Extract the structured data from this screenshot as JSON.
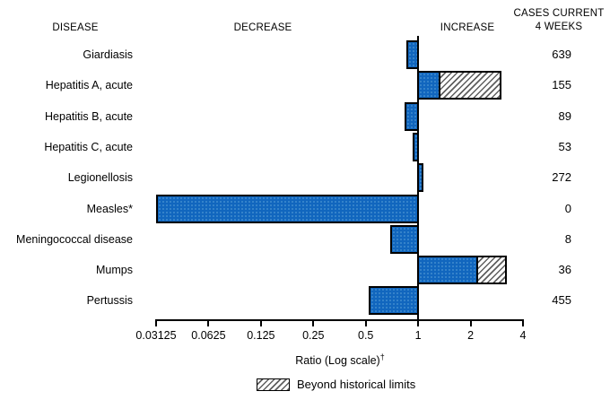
{
  "header": {
    "disease": "DISEASE",
    "decrease": "DECREASE",
    "increase": "INCREASE",
    "cases_line1": "CASES CURRENT",
    "cases_line2": "4 WEEKS"
  },
  "chart_data": {
    "type": "bar",
    "orientation": "horizontal",
    "scale": "log2",
    "title": "",
    "xlabel": "Ratio (Log scale)",
    "xlabel_superscript": "†",
    "axis": {
      "min": 0.03125,
      "max": 4,
      "baseline": 1,
      "ticks": [
        0.03125,
        0.0625,
        0.125,
        0.25,
        0.5,
        1,
        2,
        4
      ],
      "tick_labels": [
        "0.03125",
        "0.0625",
        "0.125",
        "0.25",
        "0.5",
        "1",
        "2",
        "4"
      ]
    },
    "legend": {
      "label": "Beyond historical limits",
      "pattern": "diagonal-hatch",
      "position": "bottom"
    },
    "rows": [
      {
        "disease": "Giardiasis",
        "ratio": 0.86,
        "beyond": null,
        "cases": "639"
      },
      {
        "disease": "Hepatitis A, acute",
        "ratio": 1.35,
        "beyond": 3.0,
        "cases": "155"
      },
      {
        "disease": "Hepatitis B, acute",
        "ratio": 0.84,
        "beyond": null,
        "cases": "89"
      },
      {
        "disease": "Hepatitis C, acute",
        "ratio": 0.93,
        "beyond": null,
        "cases": "53"
      },
      {
        "disease": "Legionellosis",
        "ratio": 1.07,
        "beyond": null,
        "cases": "272"
      },
      {
        "disease": "Measles*",
        "ratio": 0.03125,
        "beyond": null,
        "cases": "0"
      },
      {
        "disease": "Meningococcal disease",
        "ratio": 0.69,
        "beyond": null,
        "cases": "8"
      },
      {
        "disease": "Mumps",
        "ratio": 2.21,
        "beyond": 3.24,
        "cases": "36"
      },
      {
        "disease": "Pertussis",
        "ratio": 0.52,
        "beyond": null,
        "cases": "455"
      }
    ],
    "colors": {
      "bar_fill": "#1166be",
      "bar_border": "#000000",
      "hatch_line": "#5f5f5f",
      "background": "#ffffff"
    }
  }
}
